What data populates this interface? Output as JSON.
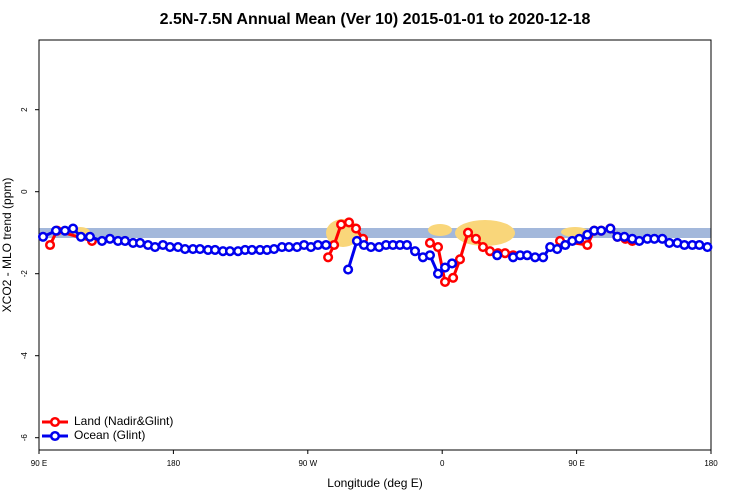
{
  "chart_data": {
    "type": "line",
    "title": "2.5N-7.5N Annual Mean (Ver 10)   2015-01-01 to 2020-12-18",
    "x_label": "Longitude (deg E)",
    "y_label": "XCO2 - MLO trend (ppm)",
    "xlim": [
      90,
      540
    ],
    "ylim": [
      -6.3,
      3.7
    ],
    "xticks": [
      {
        "value": 90,
        "label": "90 E"
      },
      180,
      {
        "value": 270,
        "label": "90 W"
      },
      {
        "value": 360,
        "label": "0"
      },
      {
        "value": 450,
        "label": "90 E"
      },
      {
        "value": 540,
        "label": "180"
      }
    ],
    "yticks": [
      -6,
      -4,
      -2,
      0,
      2
    ],
    "legend": "bottom-left",
    "series": [
      {
        "name": "Land (Nadir&Glint)",
        "color": "#ff0000",
        "x": [
          97.4,
          102.1,
          125.5,
          200,
          283.6,
          287.6,
          292.3,
          297.6,
          302.3,
          307,
          330,
          351.8,
          357.2,
          361.9,
          367.3,
          371.9,
          377.3,
          382.6,
          387.3,
          392,
          397.4,
          402.1,
          407.5,
          425,
          438.9,
          457.2,
          461.8,
          466.5,
          472.6,
          477.3,
          482.7,
          487.3
        ],
        "values": [
          -1.3,
          -0.95,
          -1.2,
          null,
          -1.6,
          -1.3,
          -0.8,
          -0.75,
          -0.9,
          -1.15,
          null,
          -1.25,
          -1.35,
          -2.2,
          -2.1,
          -1.65,
          -1.0,
          -1.15,
          -1.35,
          -1.45,
          -1.5,
          -1.5,
          -1.55,
          null,
          -1.2,
          -1.3,
          -0.95,
          -0.95,
          -0.9,
          -1.1,
          -1.15,
          -1.2
        ]
      },
      {
        "name": "Ocean (Glint)",
        "color": "#0000ee",
        "x": [
          92.7,
          101.4,
          107.4,
          112.8,
          118.1,
          124.1,
          132.2,
          137.5,
          142.9,
          147.6,
          153,
          157.7,
          163,
          167.7,
          173,
          177.7,
          183.1,
          187.8,
          193.1,
          197.8,
          203.2,
          207.9,
          213.2,
          217.9,
          223.3,
          228,
          232.6,
          238,
          242.7,
          247.4,
          252.7,
          257.4,
          262.8,
          267.5,
          272.1,
          276.8,
          282.2,
          290,
          297,
          302.9,
          307.6,
          312.3,
          317.7,
          322.4,
          327,
          331.7,
          336.4,
          341.8,
          347.1,
          351.8,
          357.2,
          361.9,
          366.6,
          380,
          396.8,
          402,
          407.5,
          412.2,
          416.9,
          422.2,
          427.6,
          432.3,
          437,
          442.4,
          447.1,
          451.8,
          457.2,
          461.8,
          466.5,
          472.6,
          477.3,
          482,
          487.3,
          492,
          497.4,
          502.1,
          507.4,
          512.1,
          517.5,
          522.2,
          527.5,
          532.2,
          537.6
        ],
        "values": [
          -1.1,
          -0.95,
          -0.95,
          -0.9,
          -1.1,
          -1.1,
          -1.2,
          -1.15,
          -1.2,
          -1.2,
          -1.25,
          -1.25,
          -1.3,
          -1.35,
          -1.3,
          -1.35,
          -1.35,
          -1.4,
          -1.4,
          -1.4,
          -1.42,
          -1.42,
          -1.45,
          -1.45,
          -1.45,
          -1.42,
          -1.42,
          -1.42,
          -1.42,
          -1.4,
          -1.35,
          -1.35,
          -1.35,
          -1.3,
          -1.35,
          -1.3,
          -1.3,
          null,
          -1.9,
          -1.2,
          -1.3,
          -1.35,
          -1.35,
          -1.3,
          -1.3,
          -1.3,
          -1.3,
          -1.45,
          -1.6,
          -1.55,
          -2.0,
          -1.85,
          -1.75,
          null,
          -1.55,
          null,
          -1.6,
          -1.55,
          -1.55,
          -1.6,
          -1.6,
          -1.35,
          -1.4,
          -1.3,
          -1.2,
          -1.15,
          -1.05,
          -0.95,
          -0.95,
          -0.9,
          -1.1,
          -1.1,
          -1.15,
          -1.2,
          -1.15,
          -1.15,
          -1.15,
          -1.25,
          -1.25,
          -1.3,
          -1.3,
          -1.3,
          -1.35
        ]
      }
    ]
  }
}
